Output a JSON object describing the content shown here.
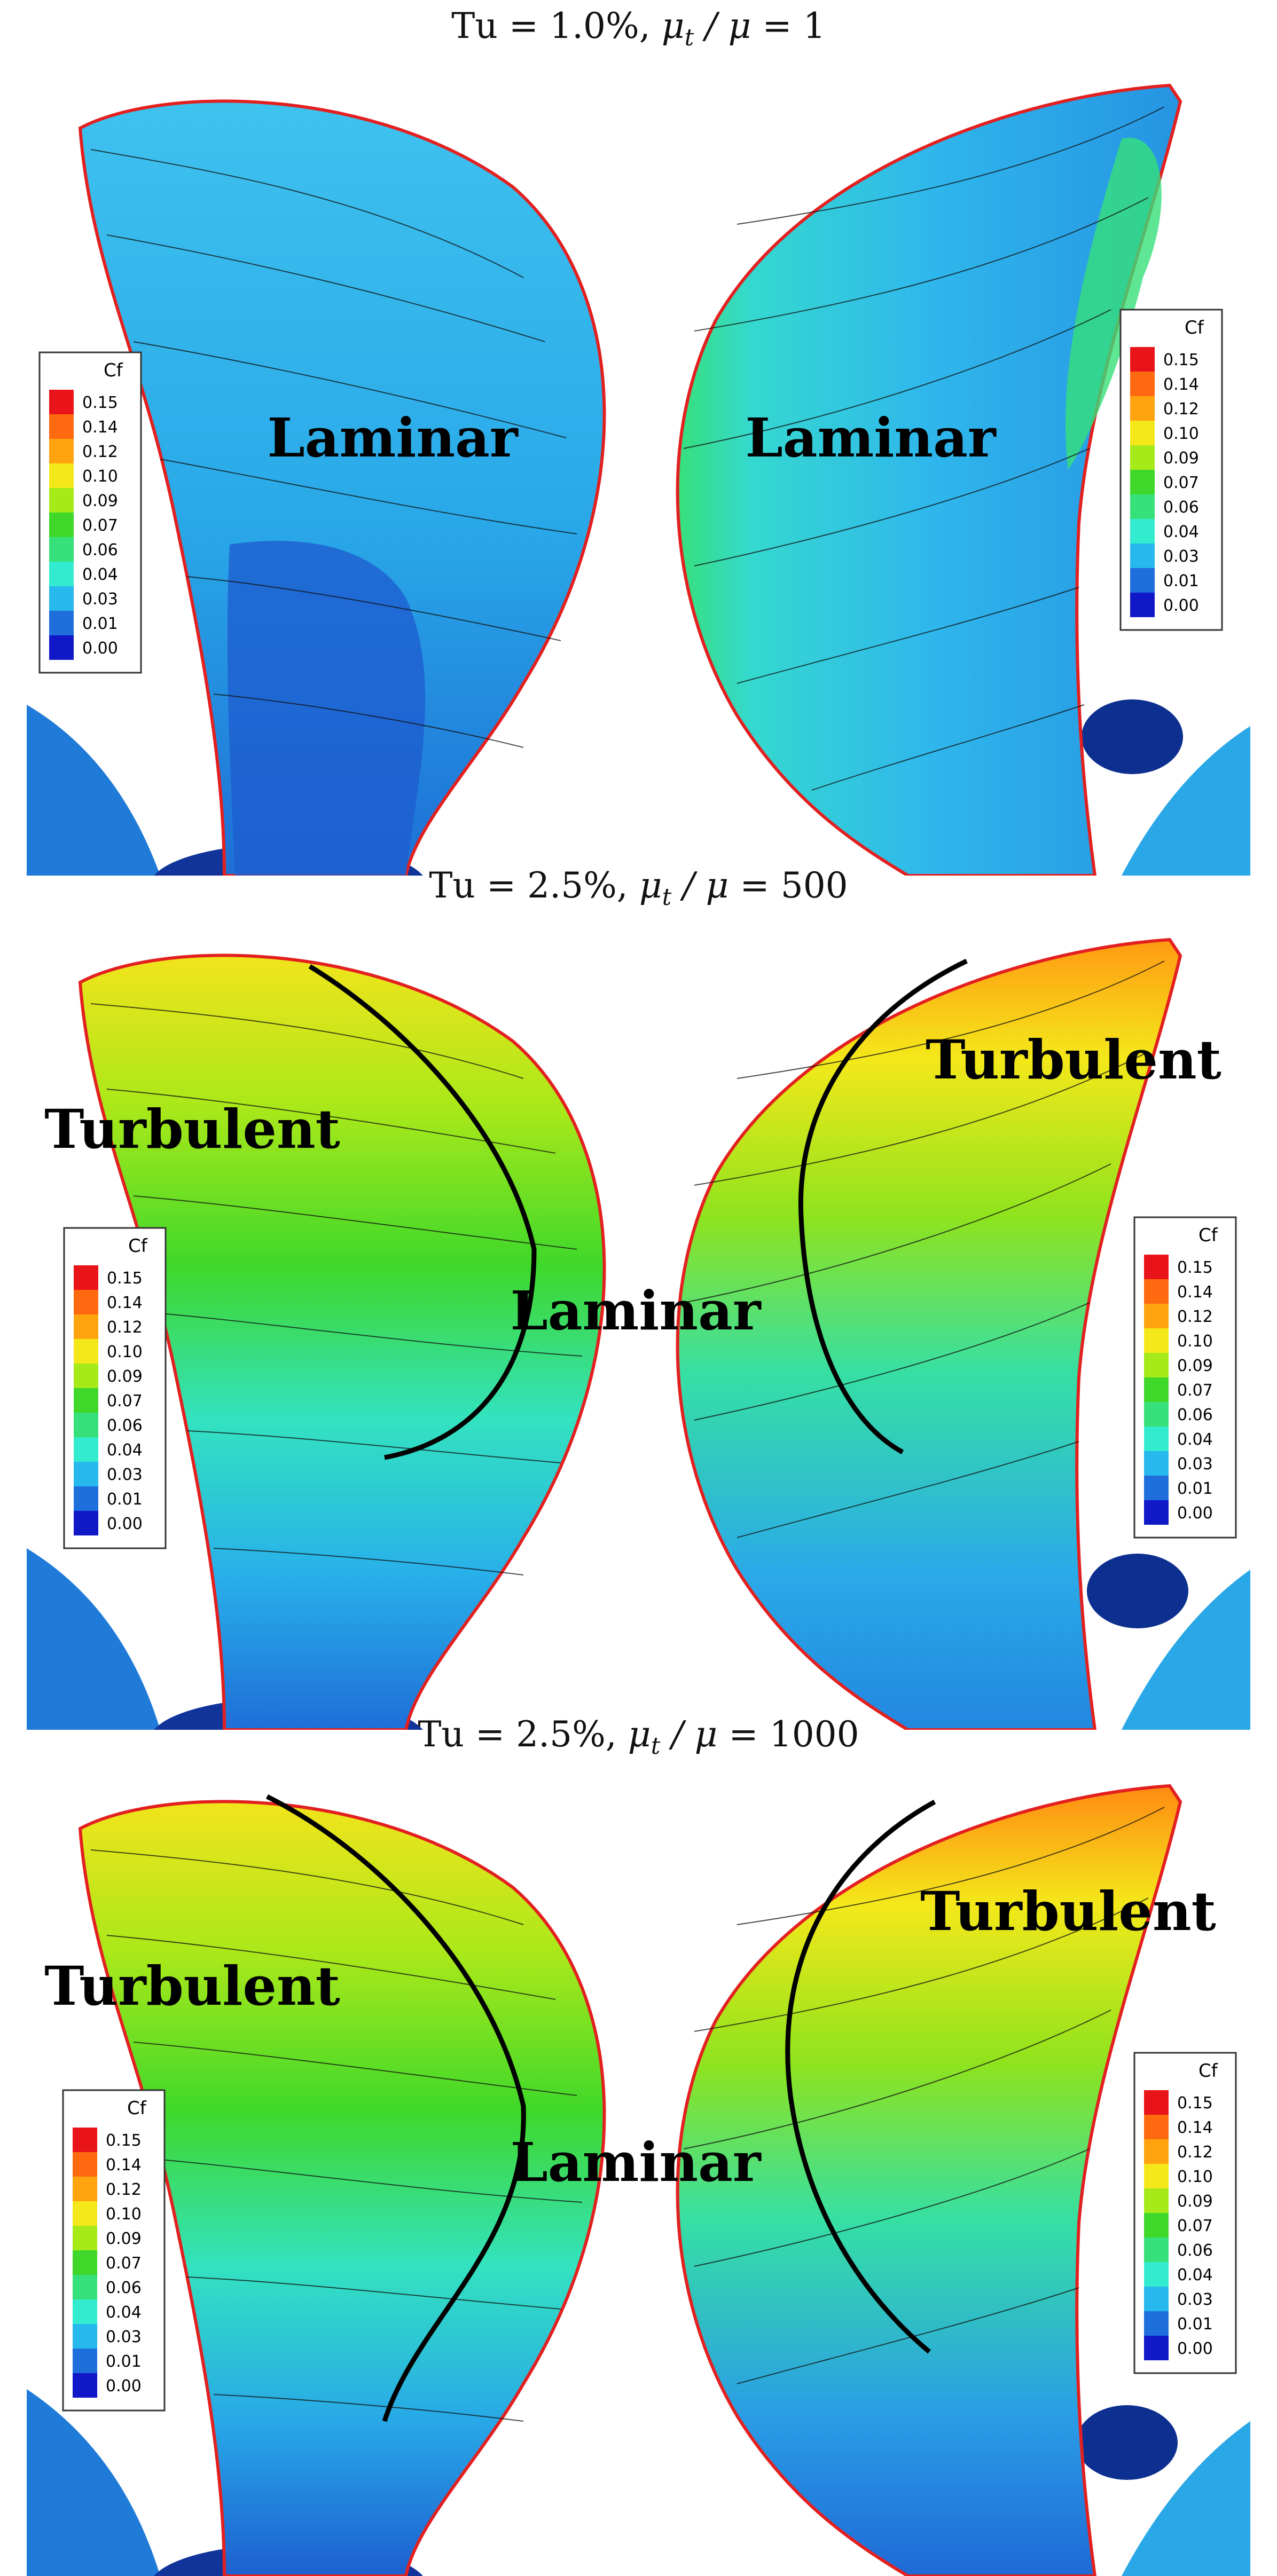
{
  "rows": [
    {
      "title": {
        "prefix": "Tu = 1.0%,",
        "ratio_label": "μt / μ =",
        "ratio_value": "1"
      },
      "labels": {
        "left": "Laminar",
        "right": "Laminar"
      },
      "transition_line": false
    },
    {
      "title": {
        "prefix": "Tu = 2.5%,",
        "ratio_label": "μt / μ =",
        "ratio_value": "500"
      },
      "labels": {
        "left_turbulent": "Turbulent",
        "center": "Laminar",
        "right_turbulent": "Turbulent"
      },
      "transition_line": true
    },
    {
      "title": {
        "prefix": "Tu = 2.5%,",
        "ratio_label": "μt / μ =",
        "ratio_value": "1000"
      },
      "labels": {
        "left_turbulent": "Turbulent",
        "center": "Laminar",
        "right_turbulent": "Turbulent"
      },
      "transition_line": true
    }
  ],
  "colorbar": {
    "title": "Cf",
    "ticks": [
      "0.15",
      "0.14",
      "0.12",
      "0.10",
      "0.09",
      "0.07",
      "0.06",
      "0.04",
      "0.03",
      "0.01",
      "0.00"
    ],
    "colors": [
      "#e8141a",
      "#ff6a10",
      "#ffa30f",
      "#f4e81a",
      "#a6ea1a",
      "#3fd82a",
      "#36e07a",
      "#33ecd0",
      "#27b8ee",
      "#1e6fdc",
      "#1018c8"
    ]
  }
}
